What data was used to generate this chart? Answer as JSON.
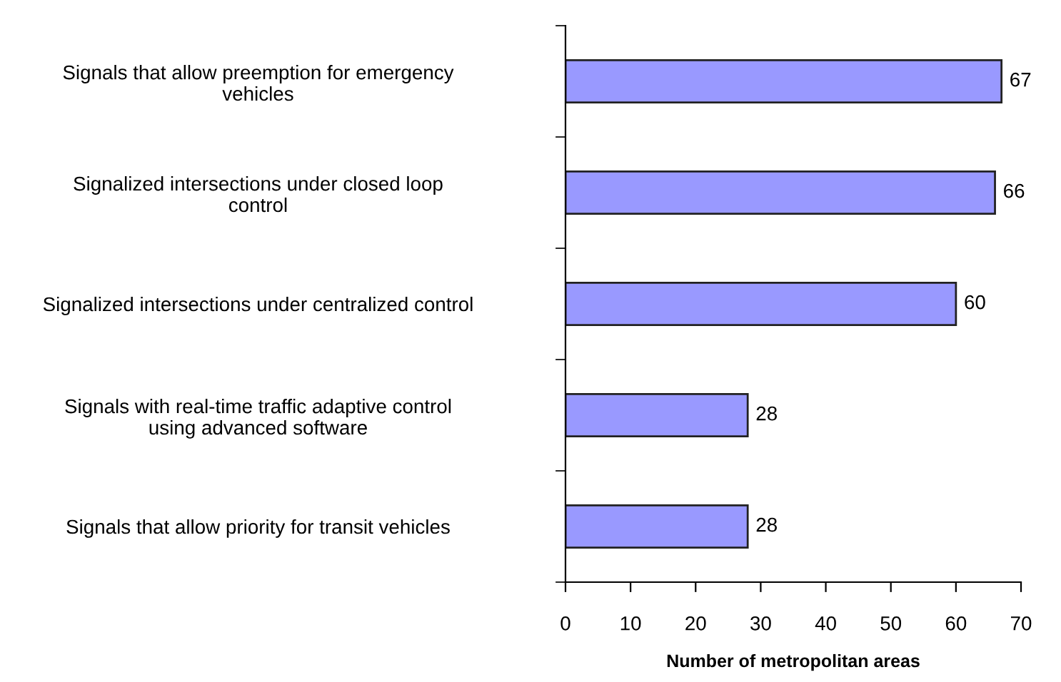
{
  "chart_data": {
    "type": "bar",
    "orientation": "horizontal",
    "xlabel": "Number of metropolitan areas",
    "categories": [
      "Signals that allow preemption for emergency\nvehicles",
      "Signalized intersections under closed loop\ncontrol",
      "Signalized intersections under centralized control",
      "Signals with real-time traffic adaptive control\nusing advanced software",
      "Signals that allow priority for transit vehicles"
    ],
    "values": [
      67,
      66,
      60,
      28,
      28
    ],
    "color": "#9999ff",
    "data_labels": true,
    "xlim": [
      0,
      70
    ],
    "xticks": [
      0,
      10,
      20,
      30,
      40,
      50,
      60,
      70
    ],
    "grid": false
  }
}
